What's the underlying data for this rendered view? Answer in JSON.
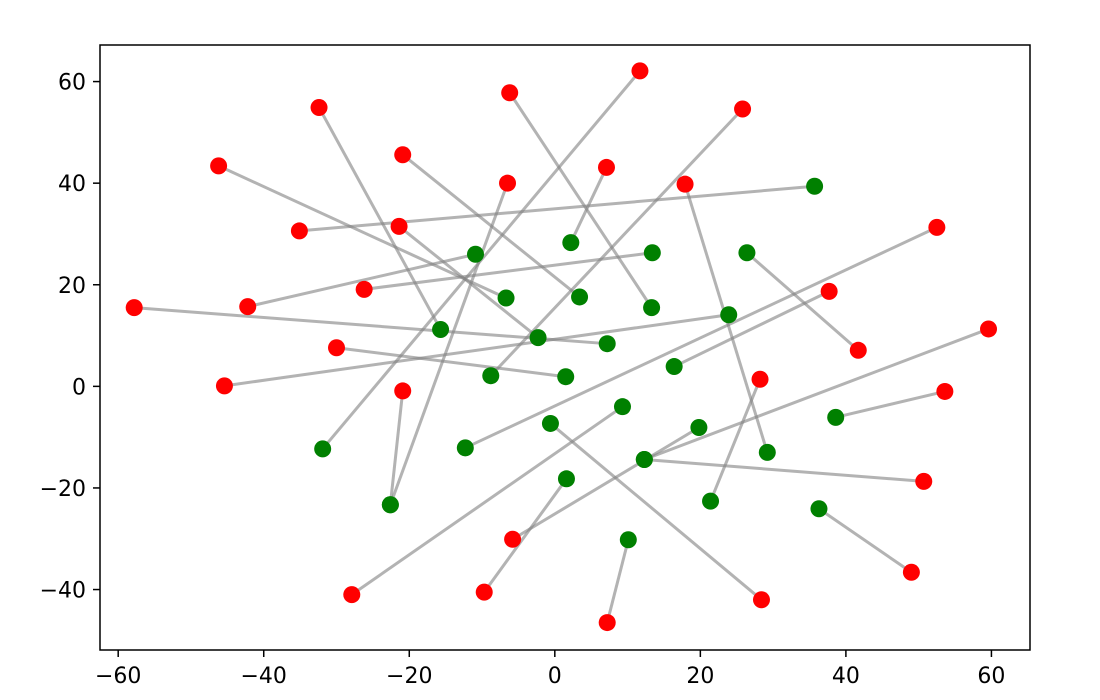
{
  "chart_data": {
    "type": "scatter",
    "title": "",
    "xlabel": "",
    "ylabel": "",
    "xlim": [
      -62.5,
      65.3
    ],
    "ylim": [
      -51.9,
      67.2
    ],
    "grid": false,
    "x_ticks": [
      {
        "value": -60,
        "label": "−60"
      },
      {
        "value": -40,
        "label": "−40"
      },
      {
        "value": -20,
        "label": "−20"
      },
      {
        "value": 0,
        "label": "0"
      },
      {
        "value": 20,
        "label": "20"
      },
      {
        "value": 40,
        "label": "40"
      },
      {
        "value": 60,
        "label": "60"
      }
    ],
    "y_ticks": [
      {
        "value": -40,
        "label": "−40"
      },
      {
        "value": -20,
        "label": "−20"
      },
      {
        "value": 0,
        "label": "0"
      },
      {
        "value": 20,
        "label": "20"
      },
      {
        "value": 40,
        "label": "40"
      },
      {
        "value": 60,
        "label": "60"
      }
    ],
    "colors": {
      "source": "#ff0000",
      "target": "#008000",
      "link": "#808080"
    },
    "pairs": [
      {
        "source": [
          11.7,
          62.1
        ],
        "target": [
          -31.9,
          -12.3
        ]
      },
      {
        "source": [
          -6.2,
          57.8
        ],
        "target": [
          13.3,
          15.5
        ]
      },
      {
        "source": [
          25.8,
          54.6
        ],
        "target": [
          -8.8,
          2.1
        ]
      },
      {
        "source": [
          -32.4,
          54.9
        ],
        "target": [
          -15.7,
          11.2
        ]
      },
      {
        "source": [
          -46.2,
          43.4
        ],
        "target": [
          -6.7,
          17.4
        ]
      },
      {
        "source": [
          -20.9,
          45.6
        ],
        "target": [
          3.4,
          17.6
        ]
      },
      {
        "source": [
          7.1,
          43.1
        ],
        "target": [
          2.2,
          28.3
        ]
      },
      {
        "source": [
          -6.5,
          40.0
        ],
        "target": [
          -22.6,
          -23.3
        ]
      },
      {
        "source": [
          17.9,
          39.8
        ],
        "target": [
          29.2,
          -13.0
        ]
      },
      {
        "source": [
          -35.1,
          30.6
        ],
        "target": [
          35.7,
          39.4
        ]
      },
      {
        "source": [
          52.5,
          31.3
        ],
        "target": [
          -12.3,
          -12.1
        ]
      },
      {
        "source": [
          -21.4,
          31.5
        ],
        "target": [
          -2.3,
          9.6
        ]
      },
      {
        "source": [
          -26.2,
          19.1
        ],
        "target": [
          13.4,
          26.3
        ]
      },
      {
        "source": [
          -42.2,
          15.7
        ],
        "target": [
          -10.9,
          26.0
        ]
      },
      {
        "source": [
          -57.8,
          15.5
        ],
        "target": [
          7.2,
          8.4
        ]
      },
      {
        "source": [
          37.7,
          18.7
        ],
        "target": [
          16.4,
          3.9
        ]
      },
      {
        "source": [
          41.7,
          7.1
        ],
        "target": [
          26.4,
          26.3
        ]
      },
      {
        "source": [
          -30.0,
          7.6
        ],
        "target": [
          1.5,
          1.9
        ]
      },
      {
        "source": [
          -45.4,
          0.1
        ],
        "target": [
          23.9,
          14.1
        ]
      },
      {
        "source": [
          59.6,
          11.3
        ],
        "target": [
          12.3,
          -14.4
        ]
      },
      {
        "source": [
          -20.9,
          -0.9
        ],
        "target": [
          -22.6,
          -23.3
        ]
      },
      {
        "source": [
          53.6,
          -1.0
        ],
        "target": [
          38.6,
          -6.1
        ]
      },
      {
        "source": [
          28.2,
          1.4
        ],
        "target": [
          21.4,
          -22.6
        ]
      },
      {
        "source": [
          50.7,
          -18.7
        ],
        "target": [
          12.3,
          -14.4
        ]
      },
      {
        "source": [
          -5.8,
          -30.1
        ],
        "target": [
          19.8,
          -8.1
        ]
      },
      {
        "source": [
          -27.9,
          -41.0
        ],
        "target": [
          9.3,
          -4.0
        ]
      },
      {
        "source": [
          -9.7,
          -40.5
        ],
        "target": [
          1.6,
          -18.2
        ]
      },
      {
        "source": [
          28.4,
          -42.0
        ],
        "target": [
          -0.6,
          -7.3
        ]
      },
      {
        "source": [
          49.0,
          -36.6
        ],
        "target": [
          36.3,
          -24.1
        ]
      },
      {
        "source": [
          7.2,
          -46.5
        ],
        "target": [
          10.1,
          -30.2
        ]
      }
    ]
  }
}
